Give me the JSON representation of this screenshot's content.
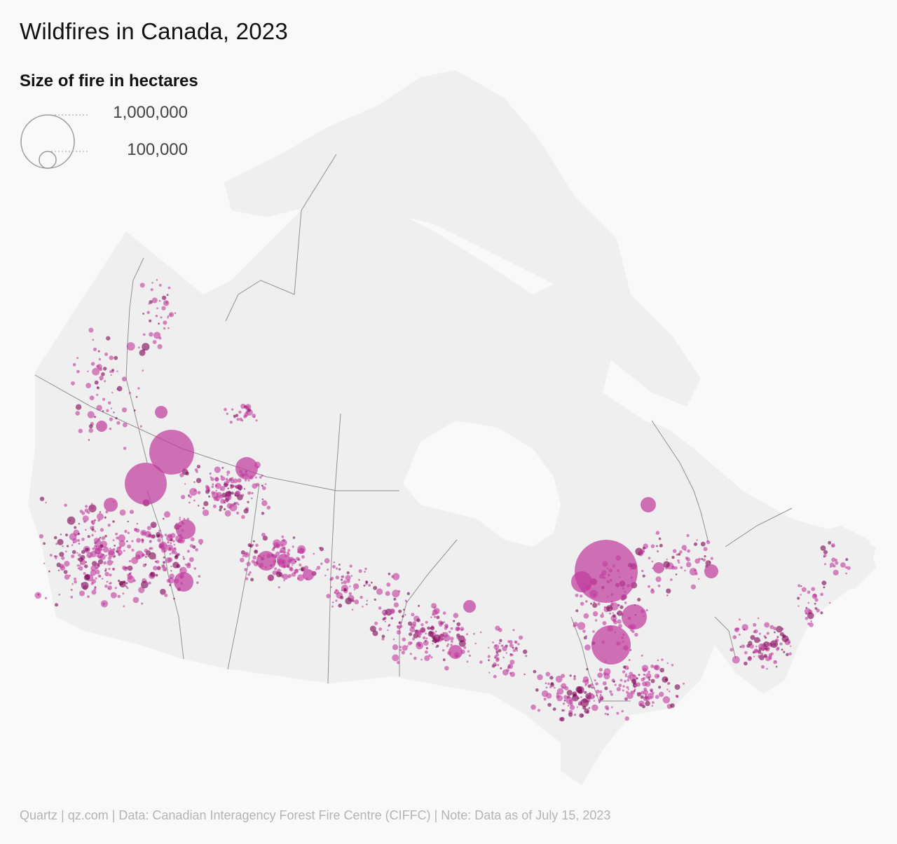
{
  "title": "Wildfires in Canada, 2023",
  "legend": {
    "title": "Size of fire in hectares",
    "sizes": [
      {
        "label": "1,000,000",
        "hectares": 1000000
      },
      {
        "label": "100,000",
        "hectares": 100000
      }
    ]
  },
  "footer": "Quartz | qz.com | Data: Canadian Interagency Forest Fire Centre (CIFFC) | Note: Data as of July 15, 2023",
  "colors": {
    "background": "#f9f9f9",
    "land": "#efefef",
    "fire": "#c0399c",
    "fire_dark": "#7a0050",
    "border": "#8f8f8f"
  }
}
